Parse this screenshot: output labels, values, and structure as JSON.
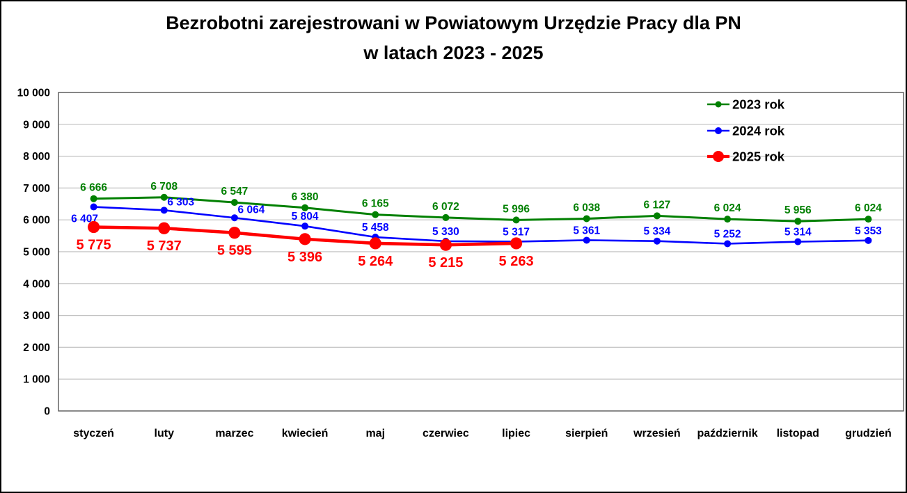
{
  "title": {
    "line1": "Bezrobotni zarejestrowani w Powiatowym Urzędzie Pracy dla PN",
    "line2": "w latach 2023 - 2025"
  },
  "chart_data": {
    "type": "line",
    "categories": [
      "styczeń",
      "luty",
      "marzec",
      "kwiecień",
      "maj",
      "czerwiec",
      "lipiec",
      "sierpień",
      "wrzesień",
      "październik",
      "listopad",
      "grudzień"
    ],
    "series": [
      {
        "name": "2023 rok",
        "color": "#008000",
        "values": [
          6666,
          6708,
          6547,
          6380,
          6165,
          6072,
          5996,
          6038,
          6127,
          6024,
          5956,
          6024
        ]
      },
      {
        "name": "2024 rok",
        "color": "#0000FF",
        "values": [
          6407,
          6303,
          6064,
          5804,
          5458,
          5330,
          5317,
          5361,
          5334,
          5252,
          5314,
          5353
        ]
      },
      {
        "name": "2025 rok",
        "color": "#FF0000",
        "values": [
          5775,
          5737,
          5595,
          5396,
          5264,
          5215,
          5263
        ]
      }
    ],
    "xlabel": "",
    "ylabel": "",
    "ylim": [
      0,
      10000
    ],
    "ytick_step": 1000,
    "ytick_labels": [
      "0",
      "1 000",
      "2 000",
      "3 000",
      "4 000",
      "5 000",
      "6 000",
      "7 000",
      "8 000",
      "9 000",
      "10 000"
    ],
    "grid": true,
    "data_labels": true,
    "number_format": "space-thousands",
    "legend_position": "top-right",
    "legend": [
      "2023 rok",
      "2024 rok",
      "2025 rok"
    ]
  },
  "colors": {
    "series_2023": "#008000",
    "series_2024": "#0000FF",
    "series_2025": "#FF0000",
    "gridline": "#BFBFBF",
    "plot_border": "#595959",
    "text": "#000000",
    "background": "#FFFFFF",
    "page_border": "#000000"
  }
}
